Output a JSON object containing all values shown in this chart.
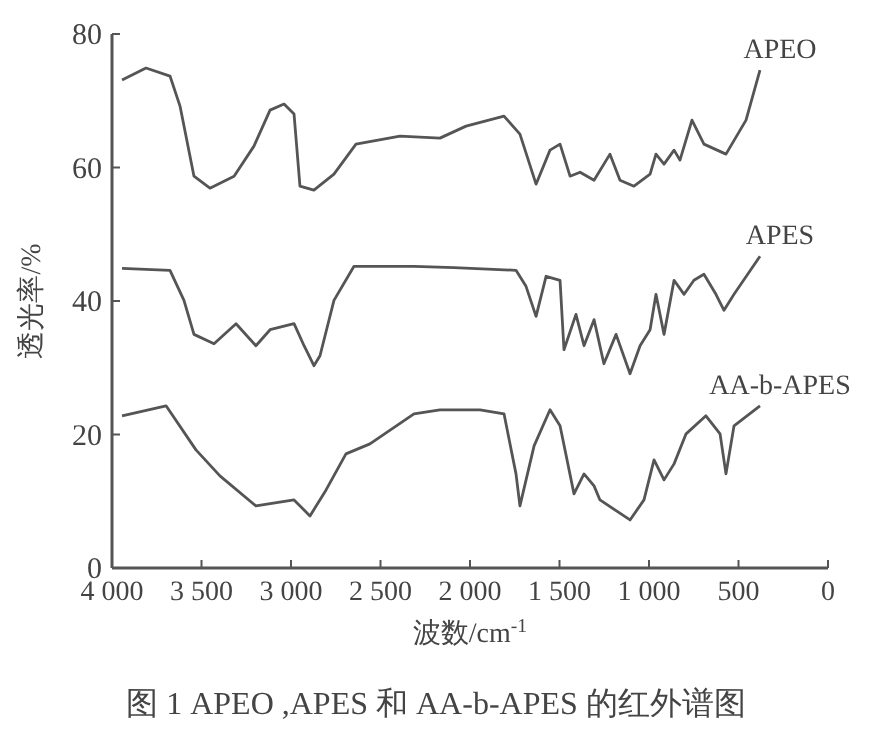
{
  "chart_data": {
    "type": "line",
    "title": "图 1  APEO ,APES 和 AA-b-APES 的红外谱图",
    "xlabel": "波数/cm$^{-1}$",
    "ylabel": "透光率/%",
    "xlim": [
      4000,
      0
    ],
    "ylim": [
      0,
      80
    ],
    "xticks": [
      {
        "value": 4000,
        "label": "4 000"
      },
      {
        "value": 3500,
        "label": "3 500"
      },
      {
        "value": 3000,
        "label": "3 000"
      },
      {
        "value": 2500,
        "label": "2 500"
      },
      {
        "value": 2000,
        "label": "2 000"
      },
      {
        "value": 1500,
        "label": "1 500"
      },
      {
        "value": 1000,
        "label": "1 000"
      },
      500,
      0
    ],
    "yticks": [
      0,
      20,
      40,
      60,
      80
    ],
    "grid": false,
    "series": [
      {
        "name": "APEO",
        "color": "#555555",
        "x": [
          3944,
          3810,
          3676,
          3620,
          3542,
          3453,
          3318,
          3207,
          3117,
          3039,
          2983,
          2950,
          2872,
          2760,
          2637,
          2391,
          2168,
          2022,
          1810,
          1721,
          1631,
          1553,
          1497,
          1441,
          1385,
          1307,
          1218,
          1162,
          1084,
          994,
          961,
          916,
          860,
          827,
          760,
          693,
          570,
          458,
          380
        ],
        "values": [
          73.1,
          74.9,
          73.7,
          69.2,
          58.7,
          56.9,
          58.7,
          63.2,
          68.6,
          69.5,
          68,
          57.2,
          56.6,
          59,
          63.5,
          64.7,
          64.4,
          66.2,
          67.7,
          65,
          57.5,
          62.6,
          63.5,
          58.7,
          59.3,
          58.1,
          62,
          58.1,
          57.2,
          59,
          62,
          60.5,
          62.6,
          61.1,
          67.1,
          63.5,
          62,
          67.1,
          74.6
        ]
      },
      {
        "name": "APES",
        "color": "#555555",
        "x": [
          3944,
          3676,
          3598,
          3542,
          3430,
          3307,
          3196,
          3117,
          2983,
          2927,
          2872,
          2838,
          2760,
          2648,
          2313,
          2089,
          1743,
          1687,
          1631,
          1575,
          1497,
          1475,
          1408,
          1363,
          1307,
          1252,
          1184,
          1106,
          1050,
          994,
          961,
          916,
          860,
          804,
          749,
          693,
          626,
          581,
          525,
          380
        ],
        "values": [
          44.9,
          44.6,
          40.1,
          35,
          33.6,
          36.6,
          33.3,
          35.7,
          36.6,
          33.3,
          30.3,
          31.8,
          40.1,
          45.2,
          45.2,
          45,
          44.6,
          42.2,
          37.7,
          43.7,
          43.1,
          32.7,
          38,
          33.3,
          37.2,
          30.6,
          35,
          29.1,
          33.3,
          35.7,
          41,
          35,
          43.1,
          41,
          43.1,
          44,
          41,
          38.6,
          41,
          46.7
        ]
      },
      {
        "name": "AA-b-APES",
        "color": "#555555",
        "x": [
          3944,
          3698,
          3531,
          3397,
          3196,
          2983,
          2894,
          2804,
          2693,
          2559,
          2313,
          2168,
          1944,
          1810,
          1743,
          1721,
          1642,
          1553,
          1497,
          1419,
          1363,
          1307,
          1274,
          1106,
          1028,
          972,
          916,
          860,
          793,
          682,
          603,
          570,
          525,
          380
        ],
        "values": [
          22.8,
          24.3,
          17.7,
          13.8,
          9.3,
          10.2,
          7.8,
          11.7,
          17.1,
          18.6,
          23.1,
          23.7,
          23.7,
          23.1,
          14.1,
          9.3,
          18.3,
          23.7,
          21.3,
          11.1,
          14.1,
          12.3,
          10.2,
          7.2,
          10.2,
          16.2,
          13.2,
          15.6,
          20.1,
          22.8,
          20.1,
          14.1,
          21.3,
          24.3
        ]
      }
    ]
  }
}
